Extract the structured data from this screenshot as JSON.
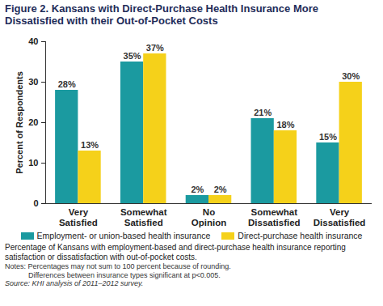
{
  "chart_data": {
    "type": "bar",
    "title": "Figure 2. Kansans with Direct-Purchase Health Insurance More Dissatisfied with their Out-of-Pocket Costs",
    "y_label": "Percent of Respondents",
    "categories": [
      "Very Satisfied",
      "Somewhat Satisfied",
      "No Opinion",
      "Somewhat Dissatisfied",
      "Very Dissatisfied"
    ],
    "series": [
      {
        "name": "Employment- or union-based health insurance",
        "color": "#1b9aa0",
        "values": [
          28,
          35,
          2,
          21,
          15
        ],
        "value_labels": [
          "28%",
          "35%",
          "2%",
          "21%",
          "15%"
        ]
      },
      {
        "name": "Direct-purchase health insurance",
        "color": "#f5d11a",
        "values": [
          13,
          37,
          2,
          18,
          30
        ],
        "value_labels": [
          "13%",
          "37%",
          "2%",
          "18%",
          "30%"
        ]
      }
    ],
    "ylim": [
      0,
      40
    ],
    "yticks": [
      0,
      10,
      20,
      30,
      40
    ],
    "grid": false,
    "legend": "bottom",
    "data_labels": true,
    "caption": "Percentage of Kansans with employment-based and direct-purchase health insurance reporting satisfaction or dissatisfaction with out-of-pocket costs.",
    "notes": [
      "Notes: Percentages may not sum to 100 percent because of rounding.",
      "Differences between insurance types significant at p<0.005."
    ],
    "source": "Source: KHI analysis of 2011–2012 survey."
  }
}
